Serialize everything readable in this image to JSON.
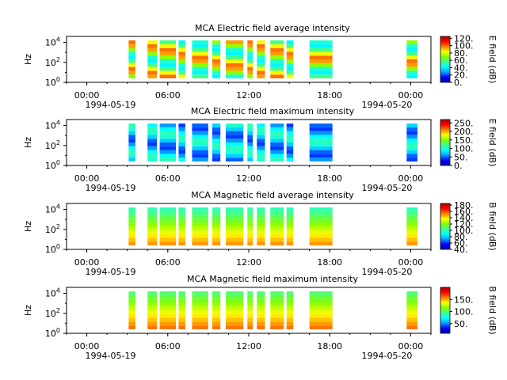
{
  "figure": {
    "panels": [
      {
        "title": "MCA  Electric field average intensity",
        "ylabel": "Hz",
        "yticks": [
          "10",
          "10",
          "10"
        ],
        "ytick_exps": [
          "0",
          "2",
          "4"
        ],
        "colorbar": {
          "label": "E field (dB)",
          "ticks": [
            "120.",
            "100.",
            "80.",
            "60.",
            "40.",
            "20.",
            "0."
          ]
        },
        "xticks": [
          "00:00",
          "06:00",
          "12:00",
          "18:00",
          "00:00"
        ],
        "date_left": "1994-05-19",
        "date_right": "1994-05-20"
      },
      {
        "title": "MCA  Electric field maximum intensity",
        "ylabel": "Hz",
        "yticks": [
          "10",
          "10",
          "10"
        ],
        "ytick_exps": [
          "0",
          "2",
          "4"
        ],
        "colorbar": {
          "label": "E field (dB)",
          "ticks": [
            "250.",
            "200.",
            "150.",
            "100.",
            "50.",
            "0."
          ]
        },
        "xticks": [
          "00:00",
          "06:00",
          "12:00",
          "18:00",
          "00:00"
        ],
        "date_left": "1994-05-19",
        "date_right": "1994-05-20"
      },
      {
        "title": "MCA  Magnetic field average intensity",
        "ylabel": "Hz",
        "yticks": [
          "10",
          "10",
          "10"
        ],
        "ytick_exps": [
          "0",
          "2",
          "4"
        ],
        "colorbar": {
          "label": "B field (dB)",
          "ticks": [
            "180.",
            "160.",
            "140.",
            "120.",
            "100.",
            "80.",
            "60.",
            "40."
          ]
        },
        "xticks": [
          "00:00",
          "06:00",
          "12:00",
          "18:00",
          "00:00"
        ],
        "date_left": "1994-05-19",
        "date_right": "1994-05-20"
      },
      {
        "title": "MCA  Magnetic field maximum intensity",
        "ylabel": "Hz",
        "yticks": [
          "10",
          "10",
          "10"
        ],
        "ytick_exps": [
          "0",
          "2",
          "4"
        ],
        "colorbar": {
          "label": "B field (dB)",
          "ticks": [
            "150.",
            "100.",
            "50."
          ]
        },
        "xticks": [
          "00:00",
          "06:00",
          "12:00",
          "18:00",
          "00:00"
        ],
        "date_left": "1994-05-19",
        "date_right": "1994-05-20"
      }
    ]
  },
  "chart_data": [
    {
      "type": "heatmap",
      "title": "MCA  Electric field average intensity",
      "ylabel": "Hz",
      "yscale": "log",
      "ylim_exp": [
        0,
        4.6
      ],
      "xlim_hours": [
        -1.5,
        25.5
      ],
      "colorbar_label": "E field (dB)",
      "colorbar_range": [
        0,
        125
      ],
      "colormap": [
        "#0000aa",
        "#0000ff",
        "#00a0ff",
        "#00ffff",
        "#40ff90",
        "#80ff00",
        "#ffff00",
        "#ff8000",
        "#ff0000",
        "#aa0000"
      ],
      "data_intervals_hours": [
        [
          3.1,
          3.6
        ],
        [
          4.5,
          5.2
        ],
        [
          5.4,
          6.6
        ],
        [
          6.8,
          7.3
        ],
        [
          7.8,
          9.0
        ],
        [
          9.3,
          9.9
        ],
        [
          10.3,
          11.6
        ],
        [
          11.9,
          12.3
        ],
        [
          12.6,
          13.2
        ],
        [
          13.6,
          14.6
        ],
        [
          14.8,
          15.3
        ],
        [
          16.5,
          18.2
        ],
        [
          23.7,
          24.5
        ]
      ],
      "freq_range_exp": [
        0.4,
        4.2
      ],
      "intensity_db_typical": [
        40,
        100
      ]
    },
    {
      "type": "heatmap",
      "title": "MCA  Electric field maximum intensity",
      "ylabel": "Hz",
      "yscale": "log",
      "ylim_exp": [
        0,
        4.6
      ],
      "xlim_hours": [
        -1.5,
        25.5
      ],
      "colorbar_label": "E field (dB)",
      "colorbar_range": [
        0,
        270
      ],
      "colormap": [
        "#0000aa",
        "#0000ff",
        "#00a0ff",
        "#00ffff",
        "#40ff90",
        "#80ff00",
        "#ffff00",
        "#ff8000",
        "#ff0000",
        "#aa0000"
      ],
      "data_intervals_hours": [
        [
          3.1,
          3.6
        ],
        [
          4.5,
          5.2
        ],
        [
          5.4,
          6.6
        ],
        [
          6.8,
          7.3
        ],
        [
          7.8,
          9.0
        ],
        [
          9.3,
          9.9
        ],
        [
          10.3,
          11.6
        ],
        [
          11.9,
          12.3
        ],
        [
          12.6,
          13.2
        ],
        [
          13.6,
          14.6
        ],
        [
          14.8,
          15.3
        ],
        [
          16.5,
          18.2
        ],
        [
          23.7,
          24.5
        ]
      ],
      "freq_range_exp": [
        0.4,
        4.2
      ],
      "intensity_db_typical": [
        40,
        110
      ]
    },
    {
      "type": "heatmap",
      "title": "MCA  Magnetic field average intensity",
      "ylabel": "Hz",
      "yscale": "log",
      "ylim_exp": [
        0,
        4.6
      ],
      "xlim_hours": [
        -1.5,
        25.5
      ],
      "colorbar_label": "B field (dB)",
      "colorbar_range": [
        40,
        185
      ],
      "colormap": [
        "#0000aa",
        "#0000ff",
        "#00a0ff",
        "#00ffff",
        "#40ff90",
        "#80ff00",
        "#ffff00",
        "#ff8000",
        "#ff0000",
        "#aa0000"
      ],
      "data_intervals_hours": [
        [
          3.1,
          3.6
        ],
        [
          4.5,
          5.2
        ],
        [
          5.4,
          6.6
        ],
        [
          6.8,
          7.3
        ],
        [
          7.8,
          9.0
        ],
        [
          9.3,
          9.9
        ],
        [
          10.3,
          11.6
        ],
        [
          11.9,
          12.3
        ],
        [
          12.6,
          13.2
        ],
        [
          13.6,
          14.6
        ],
        [
          14.8,
          15.3
        ],
        [
          16.5,
          18.2
        ],
        [
          23.7,
          24.5
        ]
      ],
      "freq_range_exp": [
        0.4,
        4.2
      ],
      "intensity_db_typical": [
        100,
        150
      ]
    },
    {
      "type": "heatmap",
      "title": "MCA  Magnetic field maximum intensity",
      "ylabel": "Hz",
      "yscale": "log",
      "ylim_exp": [
        0,
        4.6
      ],
      "xlim_hours": [
        -1.5,
        25.5
      ],
      "colorbar_label": "B field (dB)",
      "colorbar_range": [
        10,
        200
      ],
      "colormap": [
        "#0000aa",
        "#0000ff",
        "#00a0ff",
        "#00ffff",
        "#40ff90",
        "#80ff00",
        "#ffff00",
        "#ff8000",
        "#ff0000",
        "#aa0000"
      ],
      "data_intervals_hours": [
        [
          3.1,
          3.6
        ],
        [
          4.5,
          5.2
        ],
        [
          5.4,
          6.6
        ],
        [
          6.8,
          7.3
        ],
        [
          7.8,
          9.0
        ],
        [
          9.3,
          9.9
        ],
        [
          10.3,
          11.6
        ],
        [
          11.9,
          12.3
        ],
        [
          12.6,
          13.2
        ],
        [
          13.6,
          14.6
        ],
        [
          14.8,
          15.3
        ],
        [
          16.5,
          18.2
        ],
        [
          23.7,
          24.5
        ]
      ],
      "freq_range_exp": [
        0.4,
        4.2
      ],
      "intensity_db_typical": [
        100,
        160
      ]
    }
  ]
}
